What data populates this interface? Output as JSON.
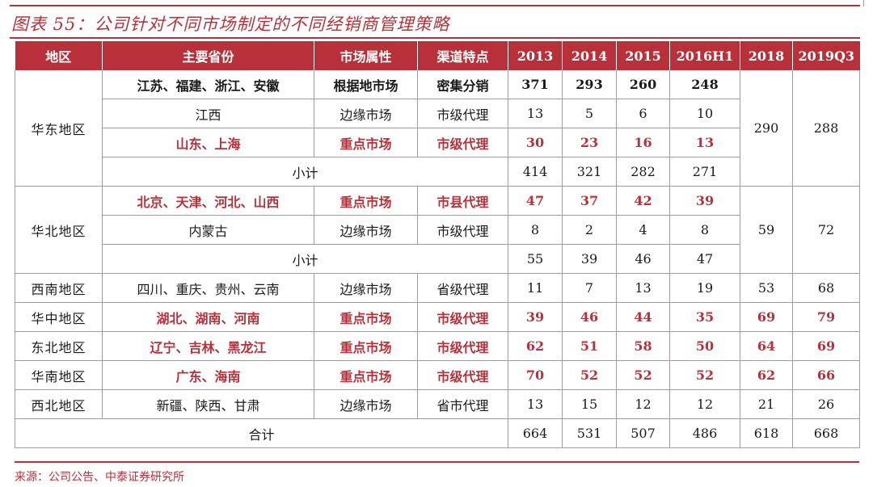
{
  "title": "图表 55：公司针对不同市场制定的不同经销商管理策略",
  "headers": [
    "地区",
    "主要省份",
    "市场属性",
    "渠道特点",
    "2013",
    "2014",
    "2015",
    "2016H1",
    "2018",
    "2019Q3"
  ],
  "regions": {
    "east": {
      "name": "华东地区",
      "rows": [
        {
          "prov": "江苏、福建、浙江、安徽",
          "attr": "根据地市场",
          "chan": "密集分销",
          "v": [
            "371",
            "293",
            "260",
            "248"
          ]
        },
        {
          "prov": "江西",
          "attr": "边缘市场",
          "chan": "市级代理",
          "v": [
            "13",
            "5",
            "6",
            "10"
          ]
        },
        {
          "prov": "山东、上海",
          "attr": "重点市场",
          "chan": "市级代理",
          "v": [
            "30",
            "23",
            "16",
            "13"
          ]
        }
      ],
      "subtotal_label": "小计",
      "subtotal": [
        "414",
        "321",
        "282",
        "271"
      ],
      "y2018": "290",
      "y2019": "288"
    },
    "north": {
      "name": "华北地区",
      "rows": [
        {
          "prov": "北京、天津、河北、山西",
          "attr": "重点市场",
          "chan": "市县代理",
          "v": [
            "47",
            "37",
            "42",
            "39"
          ]
        },
        {
          "prov": "内蒙古",
          "attr": "边缘市场",
          "chan": "市级代理",
          "v": [
            "8",
            "2",
            "4",
            "8"
          ]
        }
      ],
      "subtotal_label": "小计",
      "subtotal": [
        "55",
        "39",
        "46",
        "47"
      ],
      "y2018": "59",
      "y2019": "72"
    },
    "southwest": {
      "name": "西南地区",
      "prov": "四川、重庆、贵州、云南",
      "attr": "边缘市场",
      "chan": "省级代理",
      "v": [
        "11",
        "7",
        "13",
        "19",
        "53",
        "68"
      ]
    },
    "central": {
      "name": "华中地区",
      "prov": "湖北、湖南、河南",
      "attr": "重点市场",
      "chan": "市级代理",
      "v": [
        "39",
        "46",
        "44",
        "35",
        "69",
        "79"
      ]
    },
    "northeast": {
      "name": "东北地区",
      "prov": "辽宁、吉林、黑龙江",
      "attr": "重点市场",
      "chan": "市级代理",
      "v": [
        "62",
        "51",
        "58",
        "50",
        "64",
        "69"
      ]
    },
    "south": {
      "name": "华南地区",
      "prov": "广东、海南",
      "attr": "重点市场",
      "chan": "市级代理",
      "v": [
        "70",
        "52",
        "52",
        "52",
        "62",
        "66"
      ]
    },
    "northwest": {
      "name": "西北地区",
      "prov": "新疆、陕西、甘肃",
      "attr": "边缘市场",
      "chan": "省市代理",
      "v": [
        "13",
        "15",
        "12",
        "12",
        "21",
        "26"
      ]
    }
  },
  "total": {
    "label": "合计",
    "v": [
      "664",
      "531",
      "507",
      "486",
      "618",
      "668"
    ]
  },
  "source": "来源：公司公告、中泰证券研究所",
  "colors": {
    "accent": "#b8313a"
  }
}
